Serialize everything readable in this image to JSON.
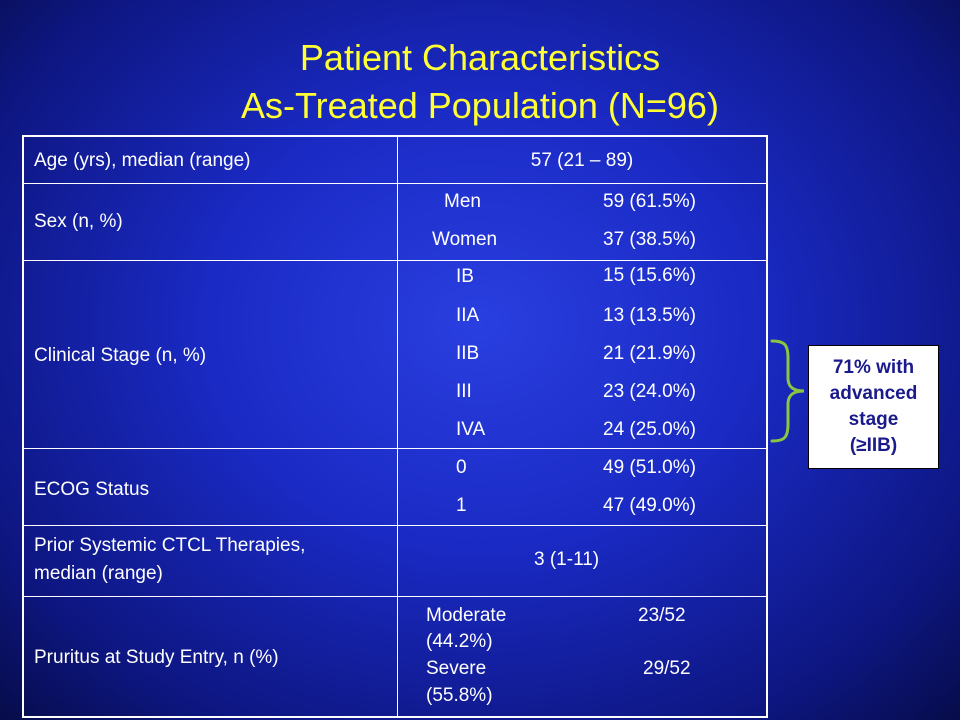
{
  "title": {
    "line1": "Patient Characteristics",
    "line2": "As-Treated Population (N=96)"
  },
  "table": {
    "age": {
      "label": "Age (yrs), median (range)",
      "value": "57 (21 – 89)"
    },
    "sex": {
      "label": "Sex (n, %)",
      "items": [
        {
          "name": "Men",
          "value": "59 (61.5%)"
        },
        {
          "name": "Women",
          "value": "37 (38.5%)"
        }
      ]
    },
    "stage": {
      "label": "Clinical Stage (n, %)",
      "items": [
        {
          "name": "IB",
          "value": "15 (15.6%)"
        },
        {
          "name": "IIA",
          "value": "13 (13.5%)"
        },
        {
          "name": "IIB",
          "value": "21 (21.9%)"
        },
        {
          "name": "III",
          "value": "23 (24.0%)"
        },
        {
          "name": "IVA",
          "value": "24 (25.0%)"
        }
      ]
    },
    "ecog": {
      "label": "ECOG Status",
      "items": [
        {
          "name": "0",
          "value": "49 (51.0%)"
        },
        {
          "name": "1",
          "value": "47 (49.0%)"
        }
      ]
    },
    "prior": {
      "label_line1": "Prior Systemic CTCL Therapies,",
      "label_line2": "median (range)",
      "value": "3 (1-11)"
    },
    "pruritus": {
      "label": "Pruritus at Study Entry, n (%)",
      "moderate_name": "Moderate",
      "moderate_value": "23/52",
      "moderate_pct": "(44.2%)",
      "severe_name": "Severe",
      "severe_value": "29/52",
      "severe_pct": "(55.8%)"
    }
  },
  "callout": {
    "text": "71% with\nadvanced\nstage\n(≥IIB)"
  },
  "colors": {
    "title": "#ffff33",
    "brace": "#8cc63f",
    "callout_text": "#1a1a8c"
  }
}
